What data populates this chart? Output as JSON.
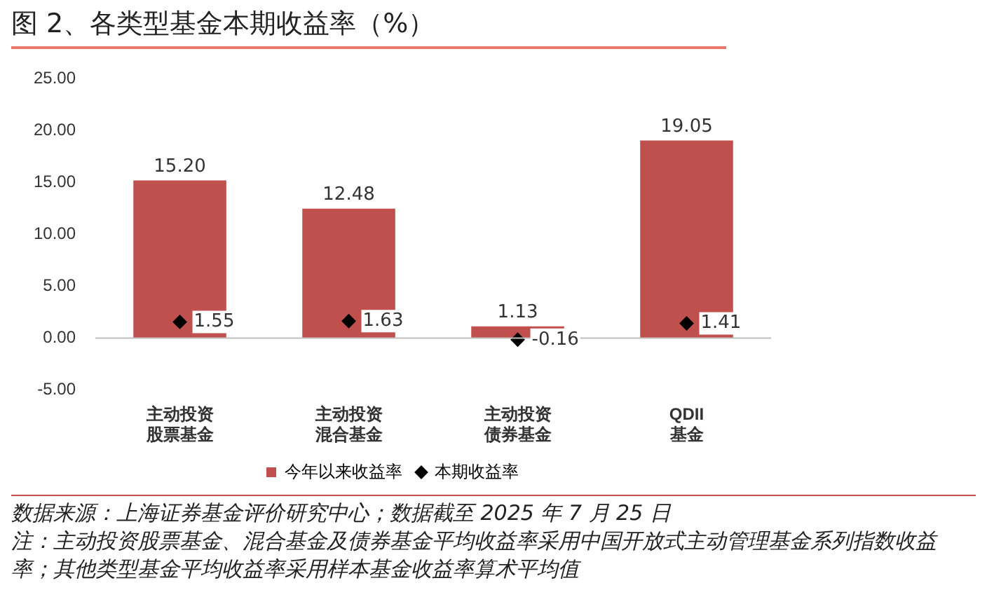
{
  "chart_data": {
    "type": "bar",
    "title": "图 2、各类型基金本期收益率（%）",
    "categories": [
      "主动投资股票基金",
      "主动投资混合基金",
      "主动投资债券基金",
      "QDII基金"
    ],
    "series": [
      {
        "name": "今年以来收益率",
        "color": "#c0504d",
        "values": [
          15.2,
          12.48,
          1.13,
          19.05
        ],
        "value_labels": [
          "15.20",
          "12.48",
          "1.13",
          "19.05"
        ]
      },
      {
        "name": "本期收益率",
        "type": "scatter",
        "color": "#000000",
        "marker": "diamond",
        "values": [
          1.55,
          1.63,
          -0.16,
          1.41
        ],
        "value_labels": [
          "1.55",
          "1.63",
          "-0.16",
          "1.41"
        ]
      }
    ],
    "ref_lines": [
      {
        "axis": "y",
        "value": 0,
        "color": "#bfbfbf"
      }
    ],
    "ylim": [
      -5,
      25
    ],
    "yticks": [
      {
        "value": -5,
        "label": "-5.00"
      },
      {
        "value": 0,
        "label": "0.00"
      },
      {
        "value": 5,
        "label": "5.00"
      },
      {
        "value": 10,
        "label": "10.00"
      },
      {
        "value": 15,
        "label": "15.00"
      },
      {
        "value": 20,
        "label": "20.00"
      },
      {
        "value": 25,
        "label": "25.00"
      }
    ],
    "legend": "bottom",
    "annotations": [
      "数据来源：上海证券基金评价研究中心；数据截至 2025 年 7 月 25 日",
      "注：主动投资股票基金、混合基金及债券基金平均收益率采用中国开放式主动管理基金系列指数收益率；其他类型基金平均收益率采用样本基金收益率算术平均值"
    ]
  }
}
